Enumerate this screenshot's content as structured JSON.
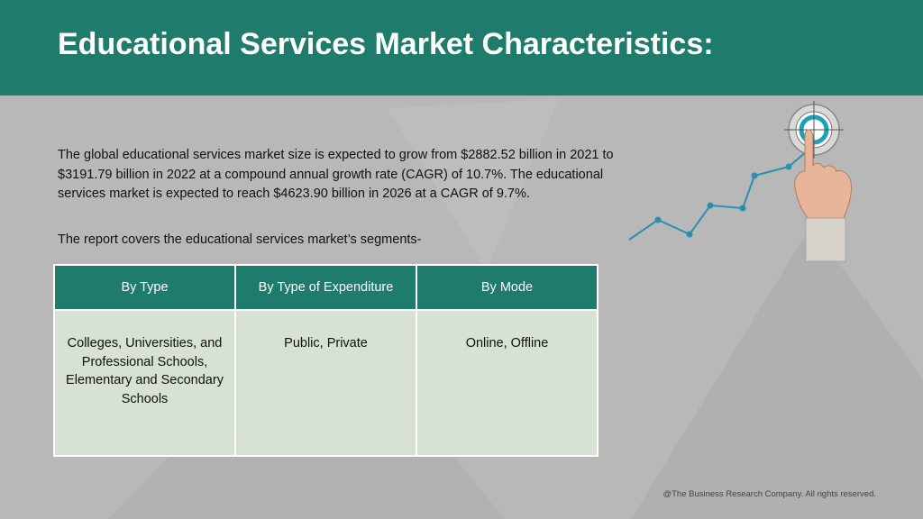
{
  "title": "Educational Services Market Characteristics:",
  "paragraph": "The global educational services market size is expected to grow from $2882.52 billion in 2021 to $3191.79 billion in 2022 at a compound annual growth rate (CAGR) of 10.7%. The educational services market is expected to reach $4623.90 billion in 2026 at a CAGR of 9.7%.",
  "segments_intro": "The report covers the educational services market’s segments-",
  "table": {
    "headers": [
      "By Type",
      "By Type of Expenditure",
      "By Mode"
    ],
    "cells": [
      "Colleges, Universities, and Professional Schools, Elementary and Secondary Schools",
      "Public, Private",
      "Online, Offline"
    ]
  },
  "footer": "@The Business Research Company. All rights reserved.",
  "colors": {
    "header_bg": "#1f7b6c",
    "table_body": "#d7e2d2",
    "background": "#b8b8b8",
    "line_accent": "#2a8fb0"
  },
  "icons": [
    "target-icon",
    "hand-pointer-icon",
    "trend-line-icon"
  ]
}
